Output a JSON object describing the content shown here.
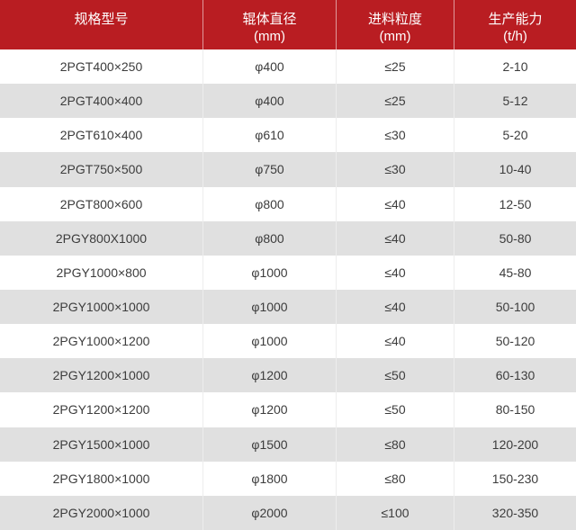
{
  "header": {
    "cells": [
      {
        "line1": "规格型号",
        "line2": ""
      },
      {
        "line1": "辊体直径",
        "line2": "(mm)"
      },
      {
        "line1": "进料粒度",
        "line2": "(mm)"
      },
      {
        "line1": "生产能力",
        "line2": "(t/h)"
      }
    ]
  },
  "chart_data": {
    "type": "table",
    "columns": [
      "规格型号",
      "辊体直径 (mm)",
      "进料粒度 (mm)",
      "生产能力 (t/h)"
    ],
    "rows": [
      [
        "2PGT400×250",
        "φ400",
        "≤25",
        "2-10"
      ],
      [
        "2PGT400×400",
        "φ400",
        "≤25",
        "5-12"
      ],
      [
        "2PGT610×400",
        "φ610",
        "≤30",
        "5-20"
      ],
      [
        "2PGT750×500",
        "φ750",
        "≤30",
        "10-40"
      ],
      [
        "2PGT800×600",
        "φ800",
        "≤40",
        "12-50"
      ],
      [
        "2PGY800X1000",
        "φ800",
        "≤40",
        "50-80"
      ],
      [
        "2PGY1000×800",
        "φ1000",
        "≤40",
        "45-80"
      ],
      [
        "2PGY1000×1000",
        "φ1000",
        "≤40",
        "50-100"
      ],
      [
        "2PGY1000×1200",
        "φ1000",
        "≤40",
        "50-120"
      ],
      [
        "2PGY1200×1000",
        "φ1200",
        "≤50",
        "60-130"
      ],
      [
        "2PGY1200×1200",
        "φ1200",
        "≤50",
        "80-150"
      ],
      [
        "2PGY1500×1000",
        "φ1500",
        "≤80",
        "120-200"
      ],
      [
        "2PGY1800×1000",
        "φ1800",
        "≤80",
        "150-230"
      ],
      [
        "2PGY2000×1000",
        "φ2000",
        "≤100",
        "320-350"
      ]
    ]
  },
  "colors": {
    "header_bg": "#b91d22",
    "header_text": "#ffffff",
    "row_bg": "#ffffff",
    "row_alt_bg": "#e0e0e0",
    "body_text": "#3c3c3c",
    "column_divider": "#ededed"
  }
}
